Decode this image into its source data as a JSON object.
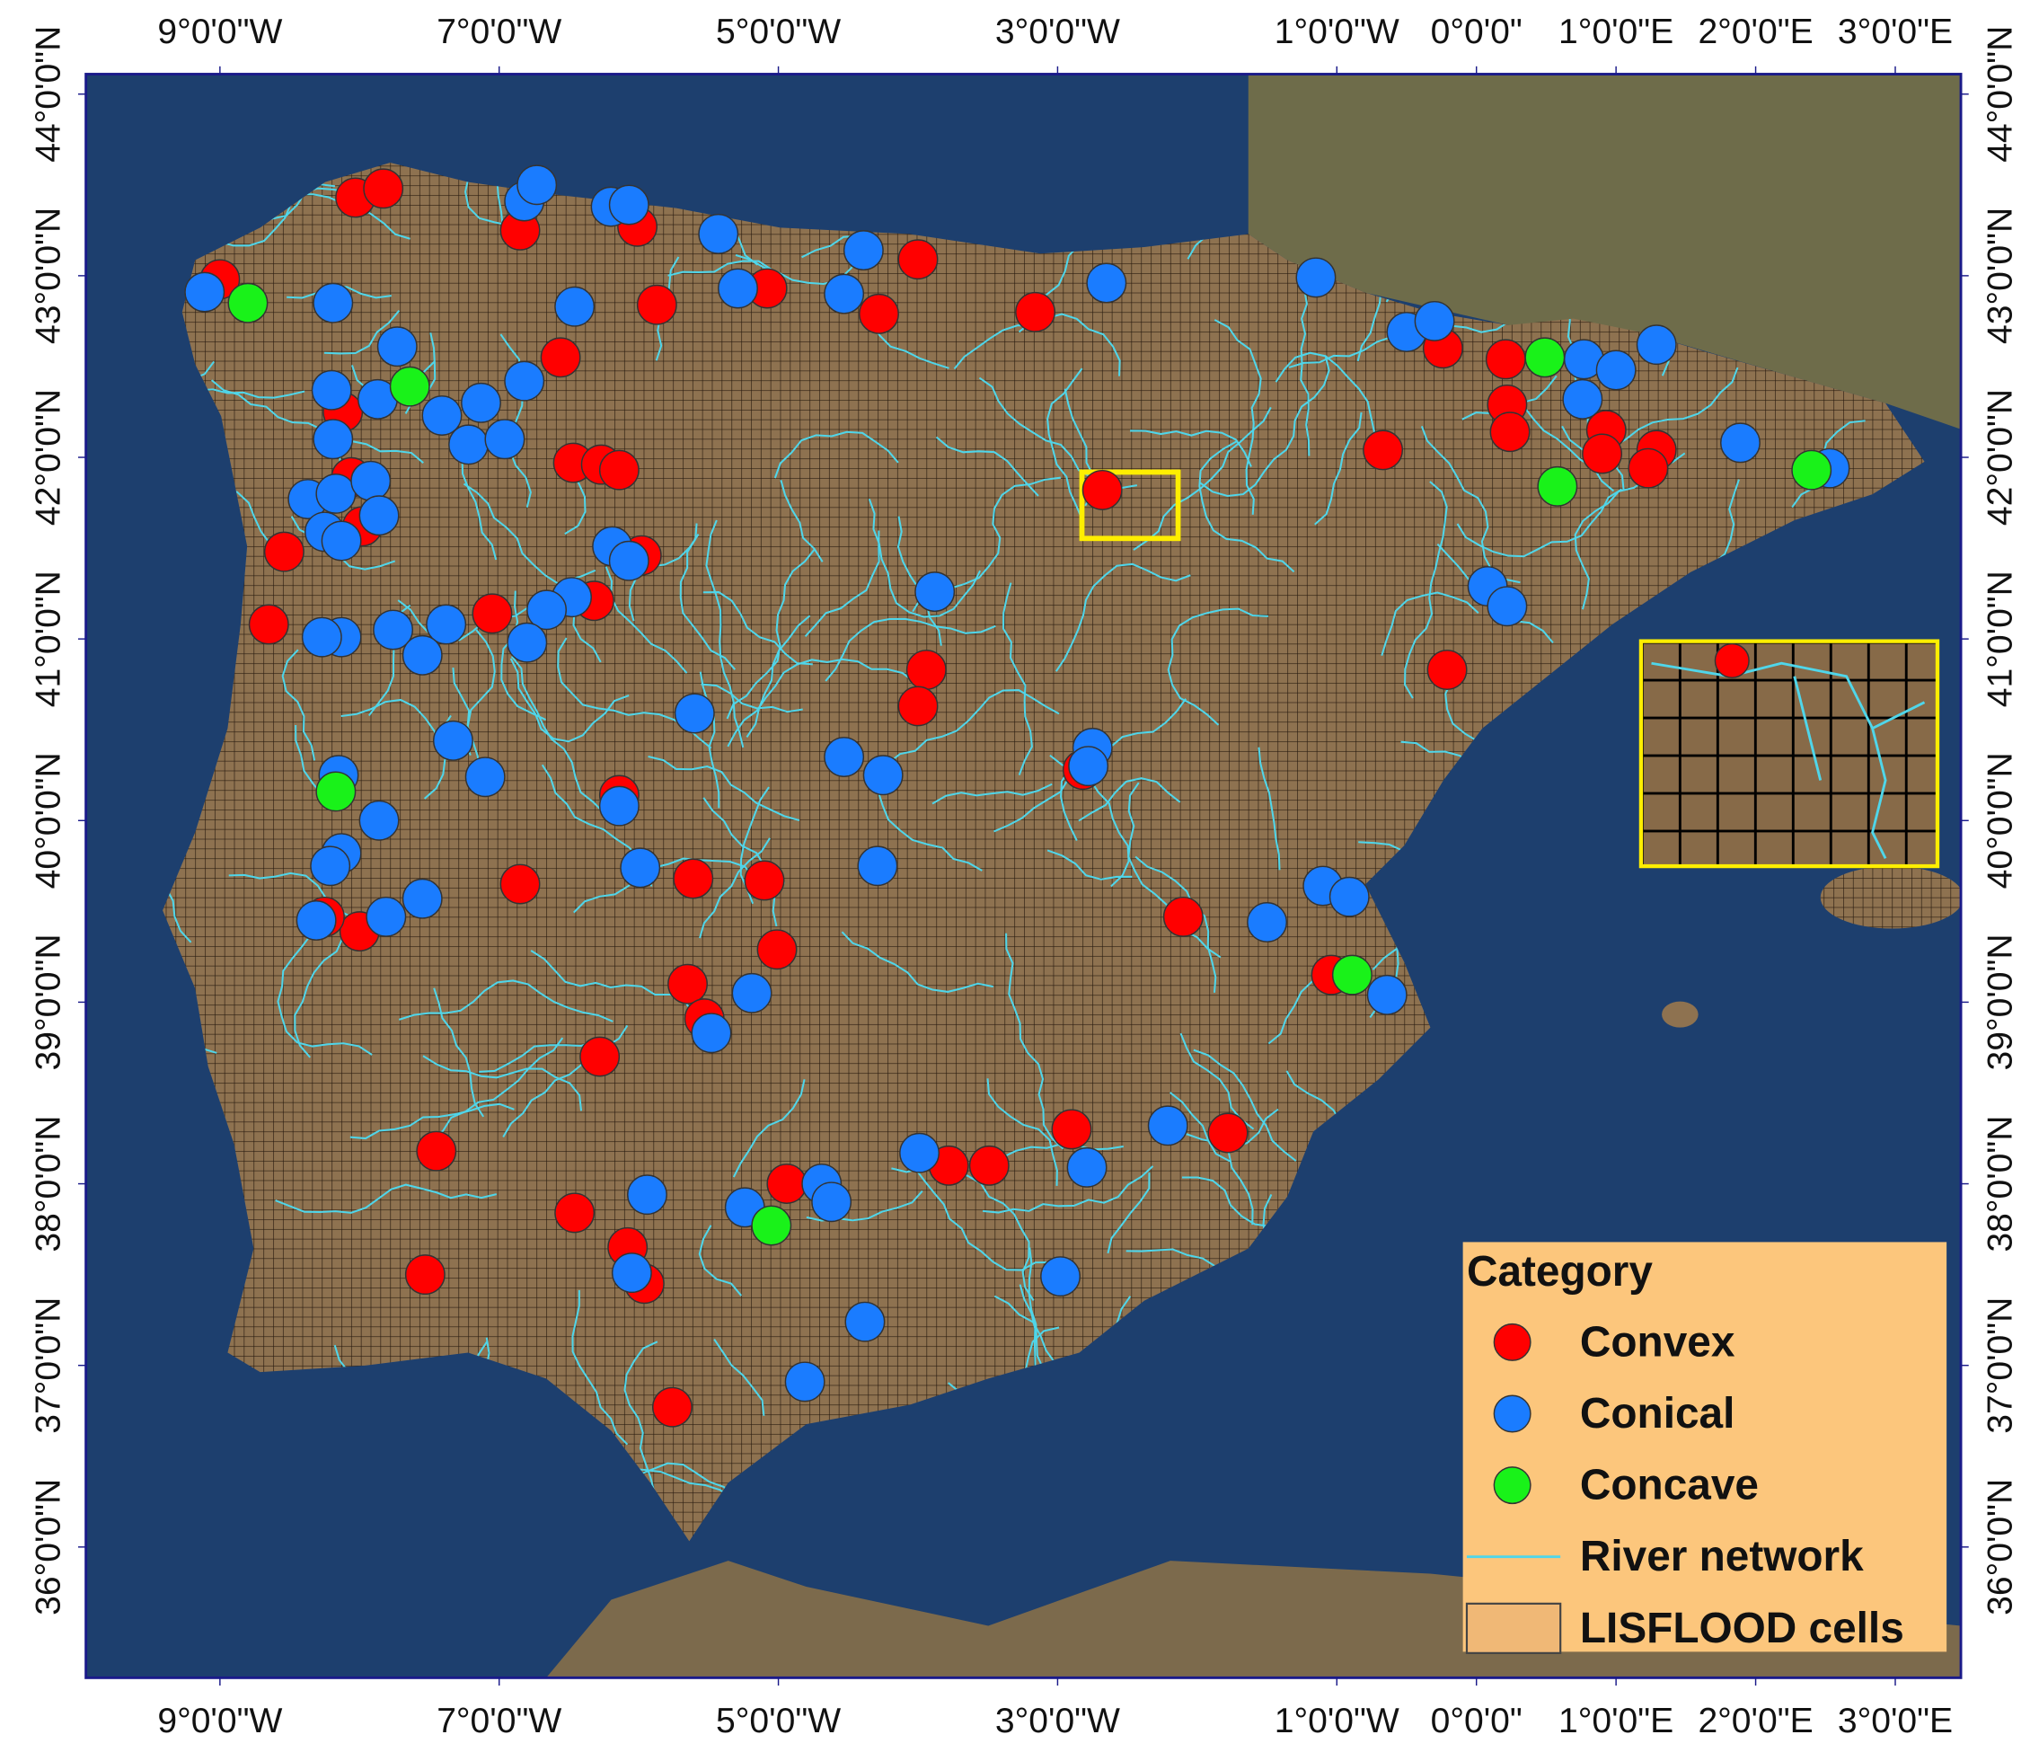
{
  "chart_data": {
    "type": "map",
    "xlim": [
      -9.96,
      3.47
    ],
    "ylim": [
      35.28,
      44.11
    ],
    "xticks": [
      {
        "value": -9,
        "label": "9°0'0\"W"
      },
      {
        "value": -7,
        "label": "7°0'0\"W"
      },
      {
        "value": -5,
        "label": "5°0'0\"W"
      },
      {
        "value": -3,
        "label": "3°0'0\"W"
      },
      {
        "value": -1,
        "label": "1°0'0\"W"
      },
      {
        "value": 0,
        "label": "0°0'0\""
      },
      {
        "value": 1,
        "label": "1°0'0\"E"
      },
      {
        "value": 2,
        "label": "2°0'0\"E"
      },
      {
        "value": 3,
        "label": "3°0'0\"E"
      }
    ],
    "yticks": [
      {
        "value": 44,
        "label": "44°0'0\"N"
      },
      {
        "value": 43,
        "label": "43°0'0\"N"
      },
      {
        "value": 42,
        "label": "42°0'0\"N"
      },
      {
        "value": 41,
        "label": "41°0'0\"N"
      },
      {
        "value": 40,
        "label": "40°0'0\"N"
      },
      {
        "value": 39,
        "label": "39°0'0\"N"
      },
      {
        "value": 38,
        "label": "38°0'0\"N"
      },
      {
        "value": 37,
        "label": "37°0'0\"N"
      },
      {
        "value": 36,
        "label": "36°0'0\"N"
      }
    ],
    "legend_title": "Category",
    "river_label": "River network",
    "river_color": "#4fd6ea",
    "cells_label": "LISFLOOD cells",
    "series": [
      {
        "name": "Convex",
        "color": "#ff0000",
        "points": [
          [
            -9.0,
            42.98
          ],
          [
            -8.03,
            43.43
          ],
          [
            -7.83,
            43.48
          ],
          [
            -6.85,
            43.25
          ],
          [
            -6.01,
            43.27
          ],
          [
            -5.87,
            42.84
          ],
          [
            -5.08,
            42.93
          ],
          [
            -4.0,
            43.09
          ],
          [
            -4.28,
            42.79
          ],
          [
            -3.16,
            42.8
          ],
          [
            -6.56,
            42.55
          ],
          [
            -8.12,
            42.25
          ],
          [
            -6.47,
            41.97
          ],
          [
            -6.27,
            41.96
          ],
          [
            -6.14,
            41.93
          ],
          [
            -8.06,
            41.89
          ],
          [
            -7.98,
            41.62
          ],
          [
            -8.54,
            41.48
          ],
          [
            -5.98,
            41.46
          ],
          [
            -6.32,
            41.21
          ],
          [
            -7.05,
            41.14
          ],
          [
            -8.65,
            41.08
          ],
          [
            -3.94,
            40.83
          ],
          [
            -4.0,
            40.63
          ],
          [
            -2.82,
            40.28
          ],
          [
            -6.14,
            40.14
          ],
          [
            -6.85,
            39.65
          ],
          [
            -5.61,
            39.68
          ],
          [
            -5.1,
            39.67
          ],
          [
            -5.01,
            39.29
          ],
          [
            -8.0,
            39.39
          ],
          [
            -8.25,
            39.47
          ],
          [
            -5.65,
            39.1
          ],
          [
            -5.53,
            38.91
          ],
          [
            -6.28,
            38.7
          ],
          [
            -2.1,
            39.47
          ],
          [
            -1.04,
            39.15
          ],
          [
            -7.45,
            38.18
          ],
          [
            -6.46,
            37.84
          ],
          [
            -6.08,
            37.65
          ],
          [
            -5.96,
            37.45
          ],
          [
            -7.53,
            37.5
          ],
          [
            -5.76,
            36.77
          ],
          [
            -4.94,
            38.0
          ],
          [
            -3.78,
            38.1
          ],
          [
            -3.49,
            38.1
          ],
          [
            -2.9,
            38.3
          ],
          [
            -1.78,
            38.28
          ],
          [
            -2.68,
            41.82
          ],
          [
            -0.67,
            42.04
          ],
          [
            -0.24,
            42.6
          ],
          [
            0.21,
            42.54
          ],
          [
            0.22,
            42.29
          ],
          [
            0.24,
            42.14
          ],
          [
            0.93,
            42.15
          ],
          [
            0.9,
            42.02
          ],
          [
            1.29,
            42.04
          ],
          [
            1.23,
            41.94
          ],
          [
            -0.21,
            40.83
          ]
        ]
      },
      {
        "name": "Conical",
        "color": "#1a7cff",
        "points": [
          [
            -9.11,
            42.91
          ],
          [
            -8.19,
            42.85
          ],
          [
            -8.2,
            42.37
          ],
          [
            -8.19,
            42.1
          ],
          [
            -7.73,
            42.61
          ],
          [
            -7.87,
            42.32
          ],
          [
            -7.41,
            42.23
          ],
          [
            -7.13,
            42.3
          ],
          [
            -7.22,
            42.07
          ],
          [
            -6.96,
            42.1
          ],
          [
            -6.82,
            43.41
          ],
          [
            -6.73,
            43.5
          ],
          [
            -6.2,
            43.38
          ],
          [
            -6.07,
            43.39
          ],
          [
            -5.43,
            43.23
          ],
          [
            -5.29,
            42.93
          ],
          [
            -4.39,
            43.14
          ],
          [
            -4.53,
            42.9
          ],
          [
            -2.65,
            42.96
          ],
          [
            -6.46,
            42.83
          ],
          [
            -6.82,
            42.42
          ],
          [
            -8.37,
            41.77
          ],
          [
            -8.17,
            41.8
          ],
          [
            -7.92,
            41.87
          ],
          [
            -7.86,
            41.68
          ],
          [
            -8.25,
            41.59
          ],
          [
            -8.13,
            41.54
          ],
          [
            -6.19,
            41.51
          ],
          [
            -6.07,
            41.43
          ],
          [
            -6.48,
            41.23
          ],
          [
            -6.66,
            41.16
          ],
          [
            -6.8,
            40.98
          ],
          [
            -7.38,
            41.08
          ],
          [
            -7.76,
            41.05
          ],
          [
            -8.13,
            41.01
          ],
          [
            -8.27,
            41.01
          ],
          [
            -7.55,
            40.91
          ],
          [
            -3.88,
            41.26
          ],
          [
            -5.6,
            40.59
          ],
          [
            -7.33,
            40.44
          ],
          [
            -7.1,
            40.24
          ],
          [
            -8.15,
            40.25
          ],
          [
            -7.86,
            40.0
          ],
          [
            -8.13,
            39.82
          ],
          [
            -8.21,
            39.75
          ],
          [
            -7.81,
            39.47
          ],
          [
            -8.31,
            39.45
          ],
          [
            -7.55,
            39.57
          ],
          [
            -5.99,
            39.74
          ],
          [
            -6.14,
            40.08
          ],
          [
            -4.53,
            40.35
          ],
          [
            -4.25,
            40.25
          ],
          [
            -4.29,
            39.75
          ],
          [
            -2.75,
            40.4
          ],
          [
            -2.78,
            40.3
          ],
          [
            -5.19,
            39.05
          ],
          [
            -5.48,
            38.83
          ],
          [
            -5.94,
            37.94
          ],
          [
            -5.24,
            37.87
          ],
          [
            -4.69,
            38.0
          ],
          [
            -4.62,
            37.9
          ],
          [
            -6.05,
            37.51
          ],
          [
            -4.38,
            37.24
          ],
          [
            -4.81,
            36.91
          ],
          [
            -3.99,
            38.17
          ],
          [
            -2.79,
            38.09
          ],
          [
            -2.21,
            38.32
          ],
          [
            -2.98,
            37.49
          ],
          [
            -1.5,
            39.44
          ],
          [
            -1.1,
            39.64
          ],
          [
            -0.91,
            39.58
          ],
          [
            -0.64,
            39.04
          ],
          [
            -1.15,
            42.99
          ],
          [
            -0.5,
            42.69
          ],
          [
            -0.3,
            42.75
          ],
          [
            0.77,
            42.54
          ],
          [
            1.0,
            42.48
          ],
          [
            0.76,
            42.32
          ],
          [
            1.29,
            42.62
          ],
          [
            1.89,
            42.08
          ],
          [
            2.53,
            41.94
          ],
          [
            0.08,
            41.29
          ],
          [
            0.22,
            41.18
          ]
        ]
      },
      {
        "name": "Concave",
        "color": "#19f219",
        "points": [
          [
            -8.8,
            42.85
          ],
          [
            -7.64,
            42.39
          ],
          [
            -8.17,
            40.16
          ],
          [
            -5.05,
            37.77
          ],
          [
            -0.89,
            39.15
          ],
          [
            0.49,
            42.55
          ],
          [
            0.58,
            41.84
          ],
          [
            2.4,
            41.93
          ]
        ]
      }
    ]
  }
}
